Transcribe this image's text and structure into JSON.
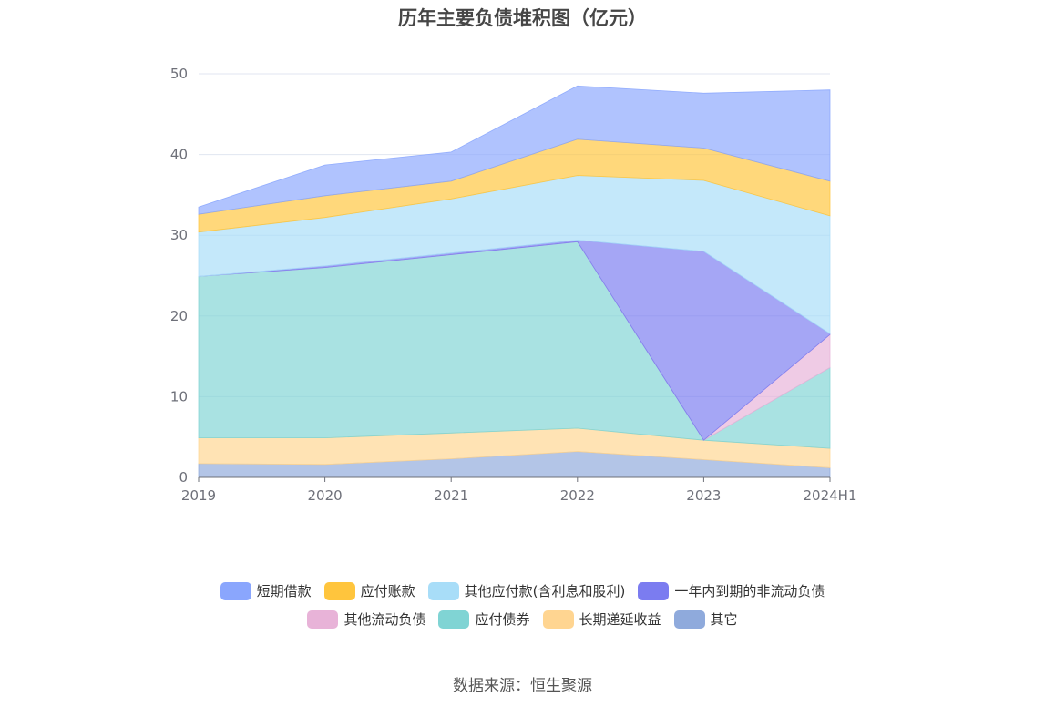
{
  "chart_data": {
    "type": "area",
    "stacked": true,
    "title": "历年主要负债堆积图（亿元）",
    "categories": [
      "2019",
      "2020",
      "2021",
      "2022",
      "2023",
      "2024H1"
    ],
    "ylim": [
      0,
      50
    ],
    "yticks": [
      0,
      10,
      20,
      30,
      40,
      50
    ],
    "grid": true,
    "legend_position": "bottom",
    "series": [
      {
        "name": "其它",
        "color": "#8faadc",
        "values": [
          1.7,
          1.6,
          2.3,
          3.2,
          2.2,
          1.2
        ]
      },
      {
        "name": "长期递延收益",
        "color": "#ffd591",
        "values": [
          3.2,
          3.3,
          3.2,
          2.9,
          2.4,
          2.4
        ]
      },
      {
        "name": "应付债券",
        "color": "#80d4d4",
        "values": [
          20.0,
          21.1,
          22.1,
          23.1,
          0.0,
          10.0
        ]
      },
      {
        "name": "其他流动负债",
        "color": "#e8b3d8",
        "values": [
          0.0,
          0.0,
          0.0,
          0.0,
          0.0,
          4.1
        ]
      },
      {
        "name": "一年内到期的非流动负债",
        "color": "#7b7cf0",
        "values": [
          0.0,
          0.2,
          0.2,
          0.2,
          23.4,
          0.1
        ]
      },
      {
        "name": "其他应付款(含利息和股利)",
        "color": "#a8ddf8",
        "values": [
          5.5,
          6.0,
          6.7,
          8.0,
          8.8,
          14.6
        ]
      },
      {
        "name": "应付账款",
        "color": "#ffc53d",
        "values": [
          2.2,
          2.7,
          2.2,
          4.5,
          4.0,
          4.3
        ]
      },
      {
        "name": "短期借款",
        "color": "#8aa6fd",
        "values": [
          0.9,
          3.8,
          3.6,
          6.6,
          6.8,
          11.3
        ]
      }
    ]
  },
  "legend_rows": [
    [
      "短期借款",
      "应付账款",
      "其他应付款(含利息和股利)",
      "一年内到期的非流动负债"
    ],
    [
      "其他流动负债",
      "应付债券",
      "长期递延收益",
      "其它"
    ]
  ],
  "source": "数据来源：恒生聚源"
}
